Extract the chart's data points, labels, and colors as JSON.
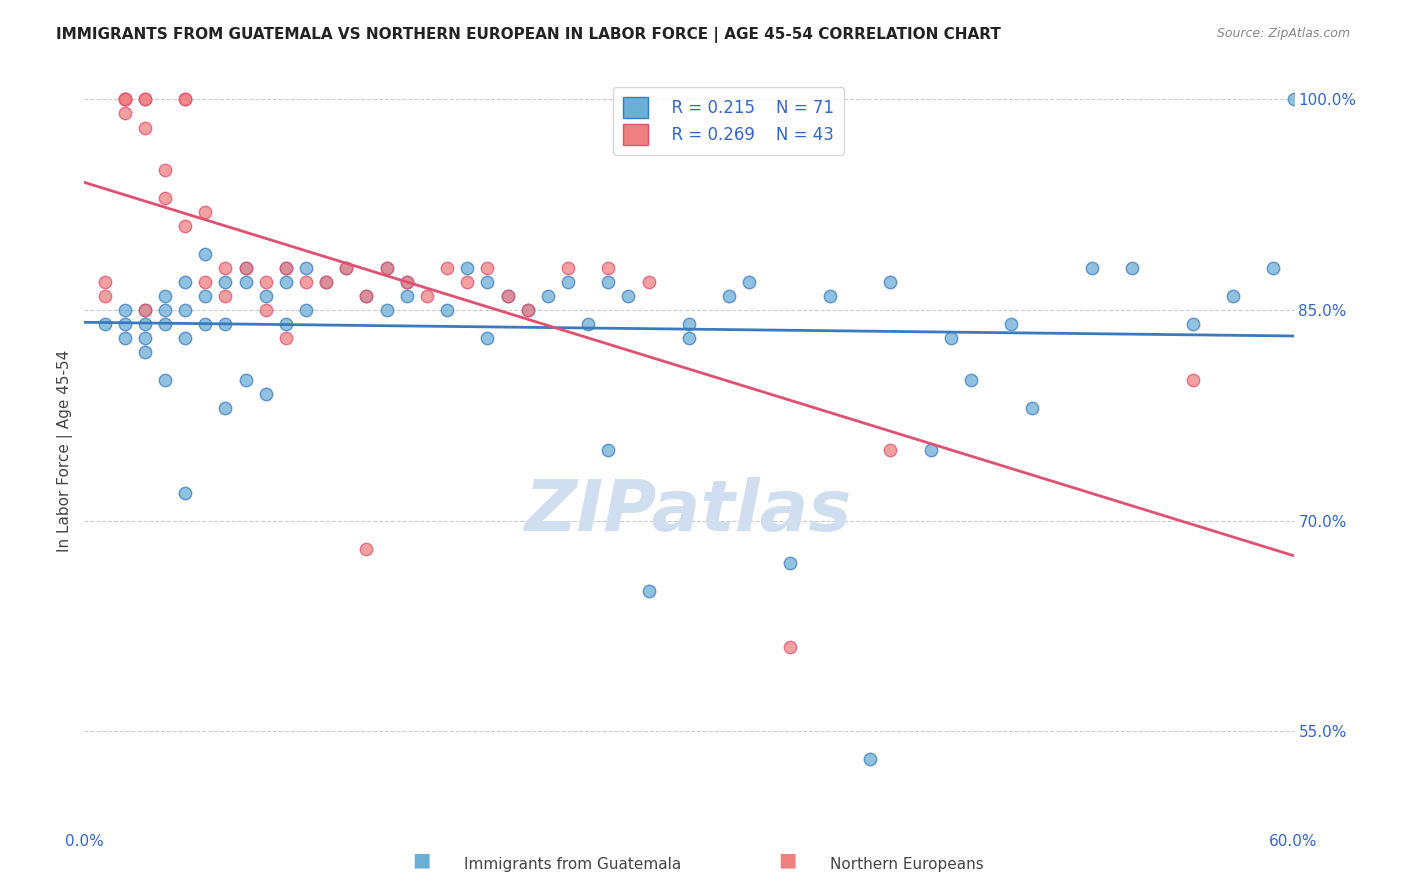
{
  "title": "IMMIGRANTS FROM GUATEMALA VS NORTHERN EUROPEAN IN LABOR FORCE | AGE 45-54 CORRELATION CHART",
  "source": "Source: ZipAtlas.com",
  "ylabel": "In Labor Force | Age 45-54",
  "x_min": 0.0,
  "x_max": 0.6,
  "y_min": 0.48,
  "y_max": 1.02,
  "y_ticks": [
    0.55,
    0.7,
    0.85,
    1.0
  ],
  "y_tick_labels": [
    "55.0%",
    "70.0%",
    "85.0%",
    "100.0%"
  ],
  "x_tick_positions": [
    0.0,
    0.1,
    0.2,
    0.3,
    0.4,
    0.5,
    0.6
  ],
  "x_tick_labels": [
    "0.0%",
    "",
    "",
    "",
    "",
    "",
    "60.0%"
  ],
  "legend_R_blue": "R = 0.215",
  "legend_N_blue": "N = 71",
  "legend_R_pink": "R = 0.269",
  "legend_N_pink": "N = 43",
  "blue_color": "#6baed6",
  "pink_color": "#f08080",
  "blue_line_color": "#3a7abf",
  "pink_line_color": "#e05070",
  "title_color": "#222222",
  "source_color": "#888888",
  "axis_color": "#3366cc",
  "grid_color": "#cccccc",
  "watermark_color": "#d0dff0",
  "blue_label": "Immigrants from Guatemala",
  "pink_label": "Northern Europeans",
  "blue_x": [
    0.01,
    0.02,
    0.02,
    0.02,
    0.03,
    0.03,
    0.03,
    0.03,
    0.04,
    0.04,
    0.04,
    0.04,
    0.05,
    0.05,
    0.05,
    0.05,
    0.06,
    0.06,
    0.06,
    0.07,
    0.07,
    0.07,
    0.08,
    0.08,
    0.08,
    0.09,
    0.09,
    0.1,
    0.1,
    0.1,
    0.11,
    0.11,
    0.12,
    0.13,
    0.14,
    0.15,
    0.15,
    0.16,
    0.16,
    0.18,
    0.19,
    0.2,
    0.2,
    0.21,
    0.22,
    0.23,
    0.24,
    0.25,
    0.26,
    0.26,
    0.27,
    0.28,
    0.3,
    0.3,
    0.32,
    0.33,
    0.35,
    0.37,
    0.39,
    0.4,
    0.42,
    0.43,
    0.44,
    0.46,
    0.47,
    0.5,
    0.52,
    0.55,
    0.57,
    0.59,
    0.6
  ],
  "blue_y": [
    0.84,
    0.85,
    0.84,
    0.83,
    0.85,
    0.84,
    0.83,
    0.82,
    0.86,
    0.85,
    0.84,
    0.8,
    0.87,
    0.85,
    0.83,
    0.72,
    0.89,
    0.86,
    0.84,
    0.87,
    0.84,
    0.78,
    0.88,
    0.87,
    0.8,
    0.86,
    0.79,
    0.88,
    0.87,
    0.84,
    0.88,
    0.85,
    0.87,
    0.88,
    0.86,
    0.88,
    0.85,
    0.87,
    0.86,
    0.85,
    0.88,
    0.87,
    0.83,
    0.86,
    0.85,
    0.86,
    0.87,
    0.84,
    0.87,
    0.75,
    0.86,
    0.65,
    0.84,
    0.83,
    0.86,
    0.87,
    0.67,
    0.86,
    0.53,
    0.87,
    0.75,
    0.83,
    0.8,
    0.84,
    0.78,
    0.88,
    0.88,
    0.84,
    0.86,
    0.88,
    1.0
  ],
  "pink_x": [
    0.01,
    0.01,
    0.02,
    0.02,
    0.02,
    0.02,
    0.03,
    0.03,
    0.03,
    0.03,
    0.04,
    0.04,
    0.05,
    0.05,
    0.05,
    0.06,
    0.06,
    0.07,
    0.07,
    0.08,
    0.09,
    0.09,
    0.1,
    0.1,
    0.11,
    0.12,
    0.13,
    0.14,
    0.14,
    0.15,
    0.16,
    0.17,
    0.18,
    0.19,
    0.2,
    0.21,
    0.22,
    0.24,
    0.26,
    0.28,
    0.35,
    0.4,
    0.55
  ],
  "pink_y": [
    0.87,
    0.86,
    1.0,
    1.0,
    1.0,
    0.99,
    1.0,
    1.0,
    0.98,
    0.85,
    0.95,
    0.93,
    1.0,
    1.0,
    0.91,
    0.92,
    0.87,
    0.88,
    0.86,
    0.88,
    0.87,
    0.85,
    0.88,
    0.83,
    0.87,
    0.87,
    0.88,
    0.86,
    0.68,
    0.88,
    0.87,
    0.86,
    0.88,
    0.87,
    0.88,
    0.86,
    0.85,
    0.88,
    0.88,
    0.87,
    0.61,
    0.75,
    0.8
  ]
}
